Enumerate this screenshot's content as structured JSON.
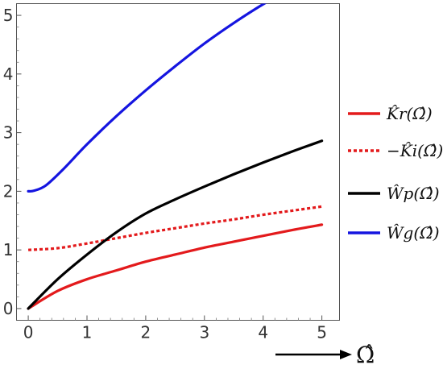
{
  "chart_data": {
    "type": "line",
    "title": "",
    "xlabel": "Ω̂",
    "ylabel": "",
    "xlim": [
      -0.2,
      5.3
    ],
    "ylim": [
      -0.2,
      5.2
    ],
    "x_ticks": [
      0,
      1,
      2,
      3,
      4,
      5
    ],
    "y_ticks": [
      0,
      1,
      2,
      3,
      4,
      5
    ],
    "grid": false,
    "legend": "right",
    "series": [
      {
        "name": "K̂r(Ω̂)",
        "color": "#e31a1c",
        "dash": "solid",
        "x": [
          0,
          0.5,
          1,
          1.5,
          2,
          2.5,
          3,
          3.5,
          4,
          4.5,
          5
        ],
        "y": [
          0,
          0.3,
          0.5,
          0.65,
          0.8,
          0.92,
          1.04,
          1.14,
          1.24,
          1.34,
          1.43
        ]
      },
      {
        "name": "−K̂i(Ω̂)",
        "color": "#e31a1c",
        "dash": "dotted",
        "x": [
          0,
          0.5,
          1,
          1.5,
          2,
          2.5,
          3,
          3.5,
          4,
          4.5,
          5
        ],
        "y": [
          1.0,
          1.03,
          1.11,
          1.2,
          1.29,
          1.37,
          1.45,
          1.52,
          1.6,
          1.67,
          1.74
        ]
      },
      {
        "name": "Ŵp(Ω̂)",
        "color": "#000000",
        "dash": "solid",
        "x": [
          0,
          0.5,
          1,
          1.5,
          2,
          2.5,
          3,
          3.5,
          4,
          4.5,
          5
        ],
        "y": [
          0,
          0.5,
          0.92,
          1.3,
          1.62,
          1.86,
          2.08,
          2.29,
          2.49,
          2.68,
          2.86
        ]
      },
      {
        "name": "Ŵg(Ω̂)",
        "color": "#1515e0",
        "dash": "solid",
        "x": [
          0,
          0.1,
          0.3,
          0.6,
          1,
          1.5,
          2,
          2.5,
          3,
          3.5,
          4,
          4.1
        ],
        "y": [
          2.0,
          2.01,
          2.1,
          2.38,
          2.8,
          3.28,
          3.72,
          4.13,
          4.52,
          4.87,
          5.19,
          5.23
        ]
      }
    ]
  }
}
